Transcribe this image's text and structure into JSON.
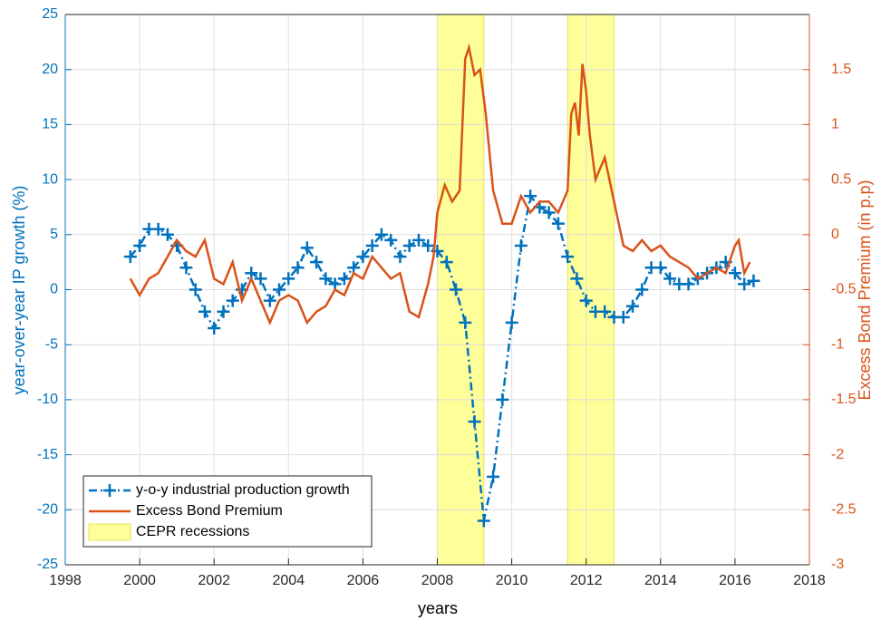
{
  "chart_data": {
    "type": "line",
    "xlabel": "years",
    "ylabel": "year-over-year IP growth (%)",
    "y2label": "Excess Bond Premium (in p.p)",
    "xlim": [
      1998,
      2018
    ],
    "xticks": [
      1998,
      2000,
      2002,
      2004,
      2006,
      2008,
      2010,
      2012,
      2014,
      2016,
      2018
    ],
    "ylim": [
      -25,
      25
    ],
    "yticks": [
      -25,
      -20,
      -15,
      -10,
      -5,
      0,
      5,
      10,
      15,
      20,
      25
    ],
    "y2lim": [
      -3,
      2
    ],
    "y2ticks": [
      -3,
      -2.5,
      -2,
      -1.5,
      -1,
      -0.5,
      0,
      0.5,
      1,
      1.5
    ],
    "grid": true,
    "legend": "lower left",
    "series": [
      {
        "name": "y-o-y industrial production growth",
        "color": "#0072bd",
        "axis": "y",
        "marker": "+",
        "dashed": true,
        "x": [
          1999.75,
          2000,
          2000.25,
          2000.5,
          2000.75,
          2001,
          2001.25,
          2001.5,
          2001.75,
          2002,
          2002.25,
          2002.5,
          2002.75,
          2003,
          2003.25,
          2003.5,
          2003.75,
          2004,
          2004.25,
          2004.5,
          2004.75,
          2005,
          2005.25,
          2005.5,
          2005.75,
          2006,
          2006.25,
          2006.5,
          2006.75,
          2007,
          2007.25,
          2007.5,
          2007.75,
          2008,
          2008.25,
          2008.5,
          2008.75,
          2009,
          2009.25,
          2009.5,
          2009.75,
          2010,
          2010.25,
          2010.5,
          2010.75,
          2011,
          2011.25,
          2011.5,
          2011.75,
          2012,
          2012.25,
          2012.5,
          2012.75,
          2013,
          2013.25,
          2013.5,
          2013.75,
          2014,
          2014.25,
          2014.5,
          2014.75,
          2015,
          2015.25,
          2015.5,
          2015.75,
          2016,
          2016.25,
          2016.5
        ],
        "values": [
          3,
          4,
          5.5,
          5.5,
          5,
          4,
          2,
          0,
          -2,
          -3.5,
          -2,
          -1,
          0,
          1.5,
          1,
          -1,
          0,
          1,
          2,
          3.8,
          2.5,
          1,
          0.5,
          1,
          2,
          3,
          4,
          5,
          4.5,
          3,
          4,
          4.5,
          4,
          3.5,
          2.5,
          0,
          -3,
          -12,
          -21,
          -17,
          -10,
          -3,
          4,
          8.5,
          7.5,
          7,
          6,
          3,
          1,
          -1,
          -2,
          -2,
          -2.5,
          -2.5,
          -1.5,
          0,
          2,
          2,
          1,
          0.5,
          0.5,
          1,
          1.5,
          2,
          2.5,
          1.5,
          0.5,
          0.8
        ]
      },
      {
        "name": "Excess Bond Premium",
        "color": "#d95319",
        "axis": "y2",
        "x": [
          1999.75,
          2000,
          2000.25,
          2000.5,
          2000.75,
          2001,
          2001.25,
          2001.5,
          2001.75,
          2002,
          2002.25,
          2002.5,
          2002.75,
          2003,
          2003.25,
          2003.5,
          2003.75,
          2004,
          2004.25,
          2004.5,
          2004.75,
          2005,
          2005.25,
          2005.5,
          2005.75,
          2006,
          2006.25,
          2006.5,
          2006.75,
          2007,
          2007.25,
          2007.5,
          2007.75,
          2007.9,
          2008,
          2008.2,
          2008.4,
          2008.6,
          2008.75,
          2008.85,
          2009,
          2009.15,
          2009.3,
          2009.5,
          2009.75,
          2010,
          2010.25,
          2010.5,
          2010.75,
          2011,
          2011.25,
          2011.5,
          2011.6,
          2011.7,
          2011.8,
          2011.9,
          2012,
          2012.1,
          2012.25,
          2012.5,
          2012.75,
          2013,
          2013.25,
          2013.5,
          2013.75,
          2014,
          2014.25,
          2014.5,
          2014.75,
          2015,
          2015.25,
          2015.5,
          2015.75,
          2016,
          2016.1,
          2016.25,
          2016.4
        ],
        "values": [
          -0.4,
          -0.55,
          -0.4,
          -0.35,
          -0.2,
          -0.05,
          -0.15,
          -0.2,
          -0.05,
          -0.4,
          -0.45,
          -0.25,
          -0.6,
          -0.4,
          -0.6,
          -0.8,
          -0.6,
          -0.55,
          -0.6,
          -0.8,
          -0.7,
          -0.65,
          -0.5,
          -0.55,
          -0.35,
          -0.4,
          -0.2,
          -0.3,
          -0.4,
          -0.35,
          -0.7,
          -0.75,
          -0.45,
          -0.2,
          0.2,
          0.45,
          0.3,
          0.4,
          1.6,
          1.7,
          1.45,
          1.5,
          1.1,
          0.4,
          0.1,
          0.1,
          0.35,
          0.2,
          0.3,
          0.3,
          0.2,
          0.4,
          1.1,
          1.2,
          0.9,
          1.55,
          1.3,
          0.9,
          0.5,
          0.7,
          0.3,
          -0.1,
          -0.15,
          -0.05,
          -0.15,
          -0.1,
          -0.2,
          -0.25,
          -0.3,
          -0.4,
          -0.35,
          -0.3,
          -0.35,
          -0.1,
          -0.05,
          -0.35,
          -0.25
        ]
      }
    ],
    "recessions": {
      "name": "CEPR recessions",
      "color": "#ffff99",
      "edge_color": "#e8e060",
      "spans": [
        [
          2008,
          2009.25
        ],
        [
          2011.5,
          2012.75
        ]
      ]
    }
  }
}
